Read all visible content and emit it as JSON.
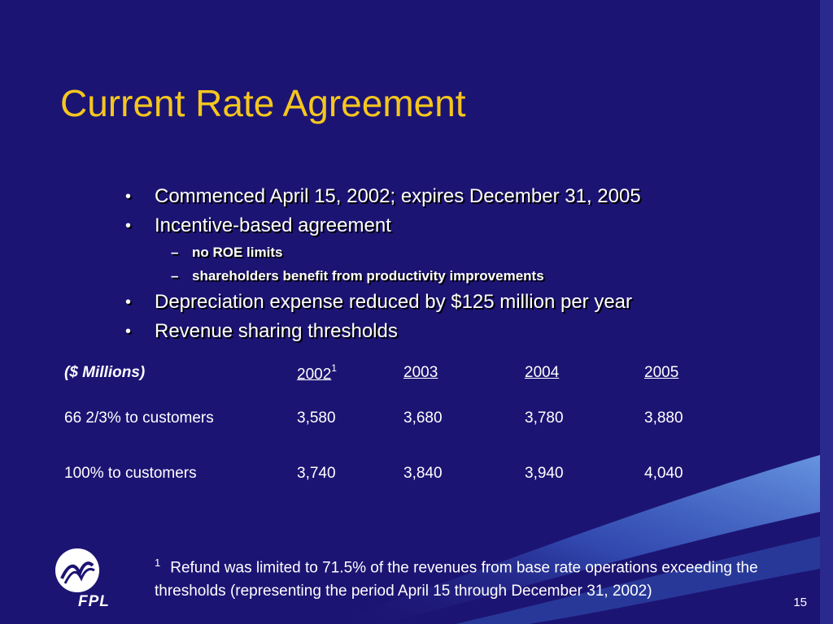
{
  "slide": {
    "title": "Current Rate Agreement",
    "page_number": "15",
    "brand_color": "#f5c61e",
    "background_color": "#1c1473"
  },
  "bullets": [
    {
      "level": 1,
      "marker": "•",
      "text": "Commenced April 15, 2002; expires December 31, 2005"
    },
    {
      "level": 1,
      "marker": "•",
      "text": "Incentive-based agreement"
    },
    {
      "level": 2,
      "marker": "–",
      "text": "no ROE limits"
    },
    {
      "level": 2,
      "marker": "–",
      "text": "shareholders benefit from productivity improvements"
    },
    {
      "level": 1,
      "marker": "•",
      "text": "Depreciation expense reduced by $125 million per year"
    },
    {
      "level": 1,
      "marker": "•",
      "text": "Revenue sharing thresholds"
    }
  ],
  "table": {
    "header_label": "($ Millions)",
    "years": [
      "2002",
      "2003",
      "2004",
      "2005"
    ],
    "first_year_footnote": "1",
    "rows": [
      {
        "label": "66 2/3% to customers",
        "values": [
          "3,580",
          "3,680",
          "3,780",
          "3,880"
        ]
      },
      {
        "label": "100% to customers",
        "values": [
          "3,740",
          "3,840",
          "3,940",
          "4,040"
        ]
      }
    ]
  },
  "footnote": {
    "marker": "1",
    "text": "Refund was limited to 71.5% of the revenues from base rate operations exceeding the thresholds (representing the period April 15 through December 31, 2002)"
  },
  "logo": {
    "text": "FPL",
    "icon": "fpl-logo-icon"
  }
}
